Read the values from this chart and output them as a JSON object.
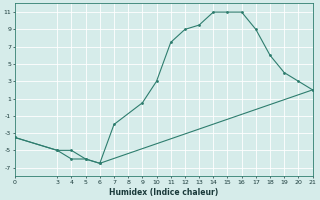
{
  "xlabel": "Humidex (Indice chaleur)",
  "bg_color": "#d6ecea",
  "line_color": "#2e7d6e",
  "grid_color": "#ffffff",
  "series1_x": [
    0,
    3,
    4,
    5,
    6,
    7,
    9,
    10,
    11,
    12,
    13,
    14,
    15,
    16,
    17,
    18,
    19,
    20,
    21
  ],
  "series1_y": [
    -3.5,
    -5.0,
    -6.0,
    -6.0,
    -6.5,
    -2.0,
    0.5,
    3.0,
    7.5,
    9.0,
    9.5,
    11.0,
    11.0,
    11.0,
    9.0,
    6.0,
    4.0,
    3.0,
    2.0
  ],
  "series2_x": [
    0,
    3,
    4,
    5,
    6,
    21
  ],
  "series2_y": [
    -3.5,
    -5.0,
    -5.0,
    -6.0,
    -6.5,
    2.0
  ],
  "xlim": [
    0,
    21
  ],
  "ylim": [
    -8,
    12
  ],
  "xticks": [
    0,
    3,
    4,
    5,
    6,
    7,
    8,
    9,
    10,
    11,
    12,
    13,
    14,
    15,
    16,
    17,
    18,
    19,
    20,
    21
  ],
  "yticks": [
    -7,
    -5,
    -3,
    -1,
    1,
    3,
    5,
    7,
    9,
    11
  ],
  "tick_fontsize": 4.5,
  "xlabel_fontsize": 5.5,
  "line_width": 0.8,
  "marker_size": 2.0
}
